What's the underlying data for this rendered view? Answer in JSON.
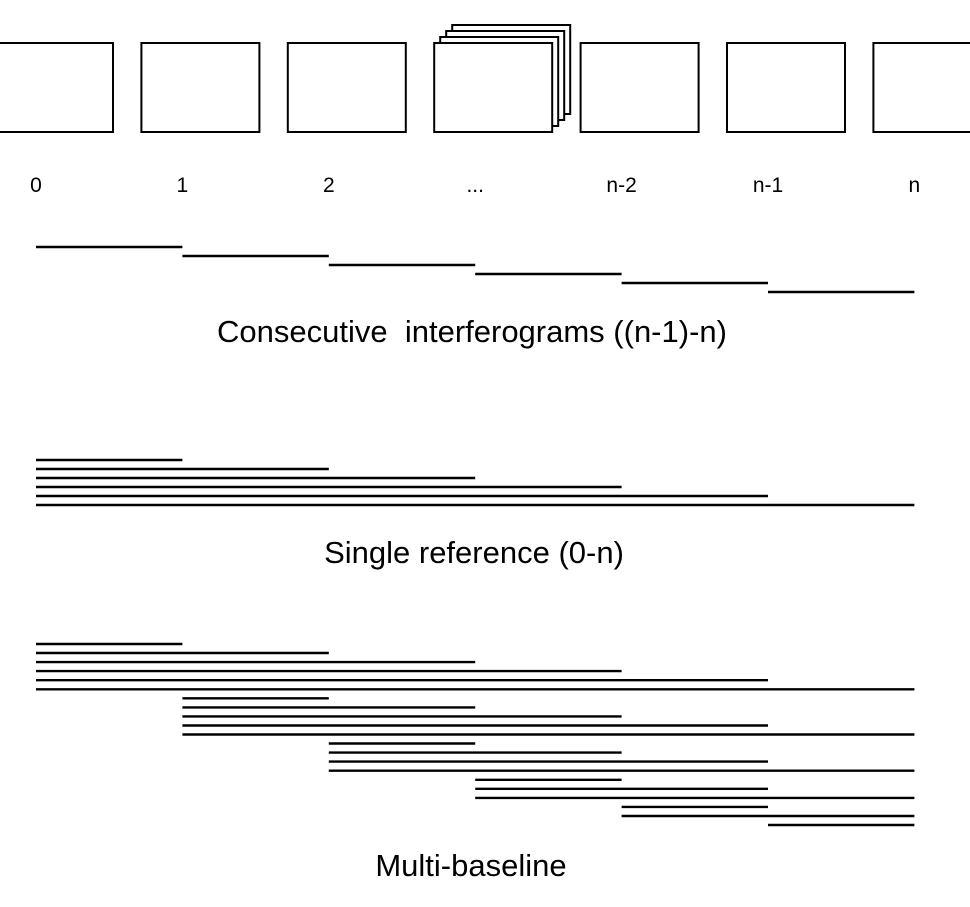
{
  "epochs": [
    "0",
    "1",
    "2",
    "...",
    "n-2",
    "n-1",
    "n"
  ],
  "stacked_epoch": "...",
  "sections": [
    {
      "id": "consecutive",
      "title": "Consecutive  interferograms ((n-1)-n)",
      "pairs": [
        [
          "0",
          "1"
        ],
        [
          "1",
          "2"
        ],
        [
          "2",
          "..."
        ],
        [
          "...",
          "n-2"
        ],
        [
          "n-2",
          "n-1"
        ],
        [
          "n-1",
          "n"
        ]
      ]
    },
    {
      "id": "single-reference",
      "title": "Single reference (0-n)",
      "pairs": [
        [
          "0",
          "1"
        ],
        [
          "0",
          "2"
        ],
        [
          "0",
          "..."
        ],
        [
          "0",
          "n-2"
        ],
        [
          "0",
          "n-1"
        ],
        [
          "0",
          "n"
        ]
      ]
    },
    {
      "id": "multi-baseline",
      "title": "Multi-baseline",
      "pairs": [
        [
          "0",
          "1"
        ],
        [
          "0",
          "2"
        ],
        [
          "0",
          "..."
        ],
        [
          "0",
          "n-2"
        ],
        [
          "0",
          "n-1"
        ],
        [
          "0",
          "n"
        ],
        [
          "1",
          "2"
        ],
        [
          "1",
          "..."
        ],
        [
          "1",
          "n-2"
        ],
        [
          "1",
          "n-1"
        ],
        [
          "1",
          "n"
        ],
        [
          "2",
          "..."
        ],
        [
          "2",
          "n-2"
        ],
        [
          "2",
          "n-1"
        ],
        [
          "2",
          "n"
        ],
        [
          "...",
          "n-2"
        ],
        [
          "...",
          "n-1"
        ],
        [
          "...",
          "n"
        ],
        [
          "n-2",
          "n-1"
        ],
        [
          "n-2",
          "n"
        ],
        [
          "n-1",
          "n"
        ]
      ]
    }
  ]
}
